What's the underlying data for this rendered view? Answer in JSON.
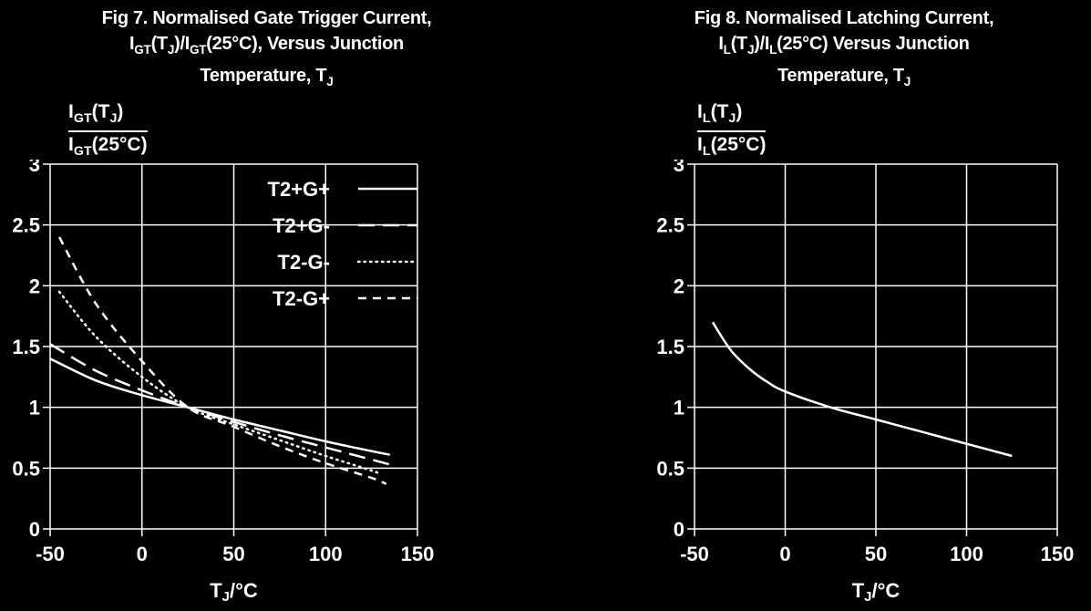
{
  "colors": {
    "background": "#000000",
    "foreground": "#ffffff"
  },
  "chart_data": [
    {
      "type": "line",
      "id": "fig7",
      "title_lines": [
        "Fig 7. Normalised Gate Trigger Current,",
        "I_{GT}(T_{J})/I_{GT}(25°C), Versus Junction",
        "Temperature, T_{J}"
      ],
      "ylabel_fraction": {
        "numerator": "I_{GT}(T_{J})",
        "denominator": "I_{GT}(25°C)"
      },
      "xlabel": "T_{J}/°C",
      "xlim": [
        -50,
        150
      ],
      "ylim": [
        0,
        3
      ],
      "xticks": [
        -50,
        0,
        50,
        100,
        150
      ],
      "xtick_labels": [
        "-50",
        "0",
        "50",
        "100",
        "150"
      ],
      "yticks": [
        0,
        0.5,
        1,
        1.5,
        2,
        2.5,
        3
      ],
      "ytick_labels": [
        "0",
        "0.5",
        "1",
        "1.5",
        "2",
        "2.5",
        "3"
      ],
      "grid": true,
      "legend": {
        "show": true,
        "position": "top-center",
        "entries": [
          "T2+G+",
          "T2+G-",
          "T2-G-",
          "T2-G+"
        ]
      },
      "series": [
        {
          "name": "T2+G+",
          "style": "solid",
          "x": [
            -50,
            -25,
            0,
            25,
            50,
            75,
            100,
            125,
            135
          ],
          "y": [
            1.4,
            1.22,
            1.1,
            1.0,
            0.9,
            0.81,
            0.72,
            0.64,
            0.61
          ]
        },
        {
          "name": "T2+G-",
          "style": "long-dash",
          "x": [
            -50,
            -25,
            0,
            25,
            50,
            75,
            100,
            125,
            135
          ],
          "y": [
            1.52,
            1.3,
            1.14,
            1.0,
            0.88,
            0.77,
            0.67,
            0.57,
            0.53
          ]
        },
        {
          "name": "T2-G-",
          "style": "dotted",
          "x": [
            -45,
            -25,
            0,
            25,
            50,
            75,
            100,
            125,
            130
          ],
          "y": [
            1.95,
            1.58,
            1.25,
            1.0,
            0.86,
            0.73,
            0.6,
            0.48,
            0.45
          ]
        },
        {
          "name": "T2-G+",
          "style": "dash",
          "x": [
            -45,
            -25,
            0,
            25,
            50,
            75,
            100,
            125,
            133
          ],
          "y": [
            2.4,
            1.85,
            1.38,
            1.0,
            0.84,
            0.68,
            0.54,
            0.42,
            0.37
          ]
        }
      ]
    },
    {
      "type": "line",
      "id": "fig8",
      "title_lines": [
        "Fig 8. Normalised Latching Current,",
        "I_{L}(T_{J})/I_{L}(25°C) Versus Junction",
        "Temperature, T_{J}"
      ],
      "ylabel_fraction": {
        "numerator": "I_{L}(T_{J})",
        "denominator": "I_{L}(25°C)"
      },
      "xlabel": "T_{J}/°C",
      "xlim": [
        -50,
        150
      ],
      "ylim": [
        0,
        3
      ],
      "xticks": [
        -50,
        0,
        50,
        100,
        150
      ],
      "xtick_labels": [
        "-50",
        "0",
        "50",
        "100",
        "150"
      ],
      "yticks": [
        0,
        0.5,
        1,
        1.5,
        2,
        2.5,
        3
      ],
      "ytick_labels": [
        "0",
        "0.5",
        "1",
        "1.5",
        "2",
        "2.5",
        "3"
      ],
      "grid": true,
      "legend": {
        "show": false,
        "entries": []
      },
      "series": [
        {
          "name": "IL",
          "style": "solid",
          "x": [
            -40,
            -30,
            -20,
            -10,
            0,
            25,
            50,
            75,
            100,
            125
          ],
          "y": [
            1.7,
            1.47,
            1.32,
            1.21,
            1.13,
            1.0,
            0.9,
            0.8,
            0.7,
            0.6
          ]
        }
      ]
    }
  ]
}
